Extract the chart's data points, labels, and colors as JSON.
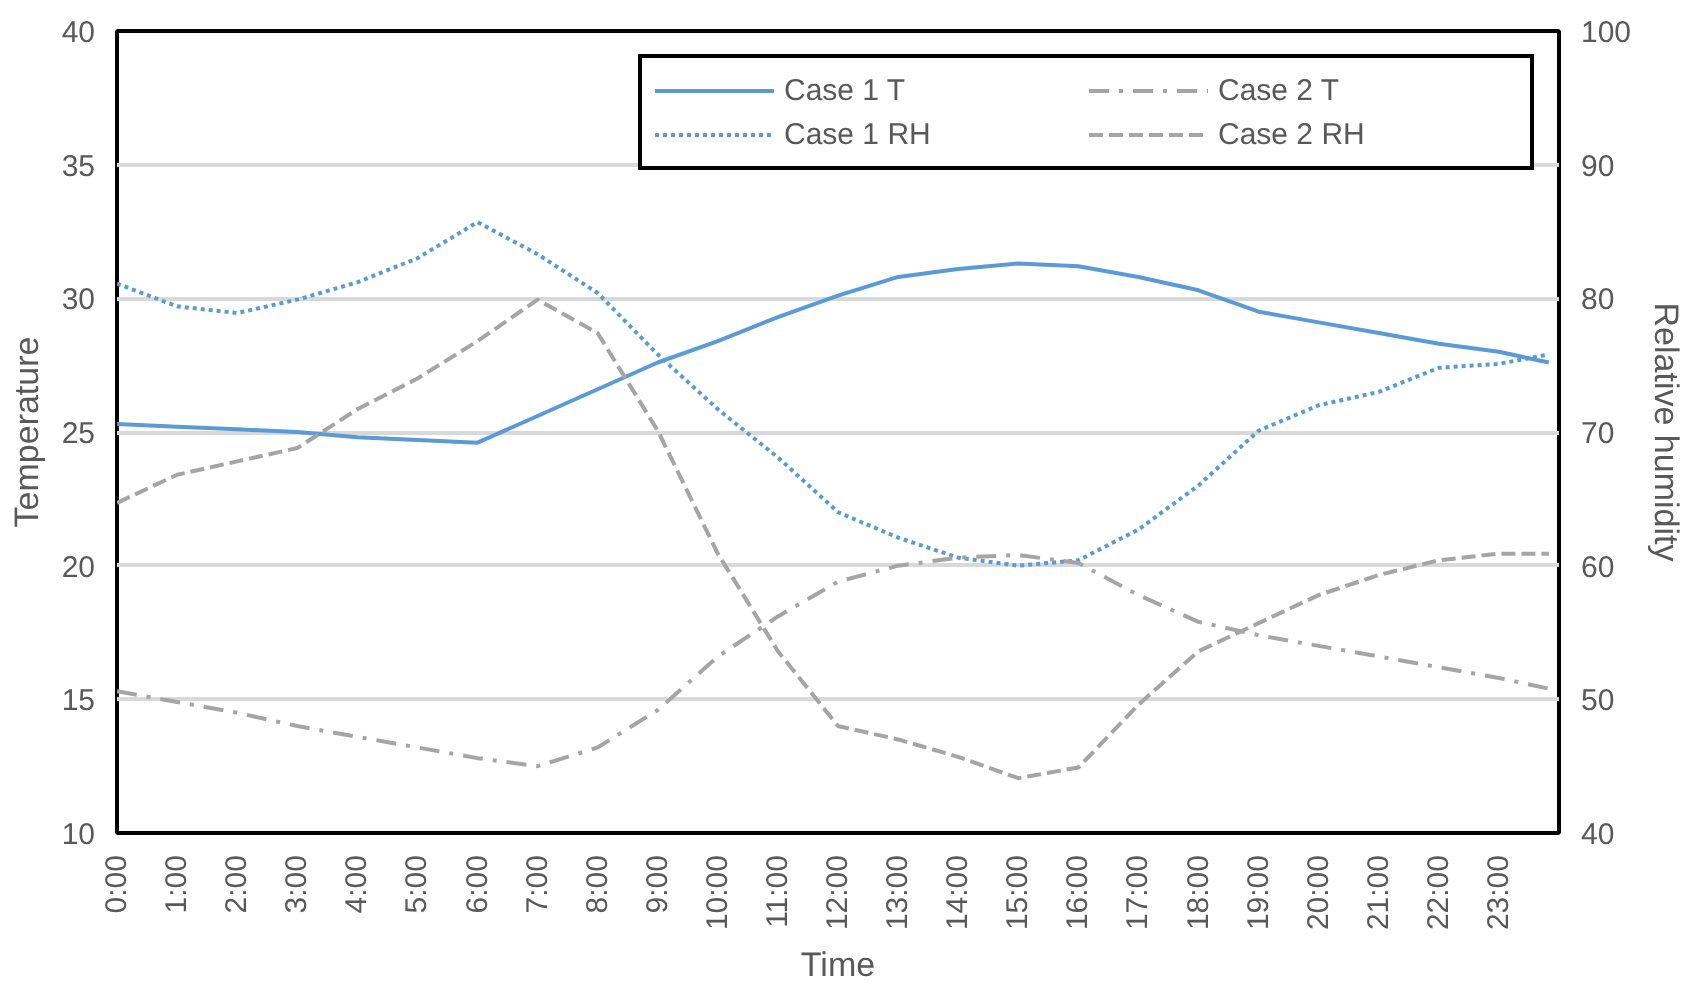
{
  "chart_data": {
    "type": "line",
    "xlabel": "Time",
    "ylabel": "Temperature",
    "y2label": "Relative humidity",
    "x": [
      0,
      1,
      2,
      3,
      4,
      5,
      6,
      7,
      8,
      9,
      10,
      11,
      12,
      13,
      14,
      15,
      16,
      17,
      18,
      19,
      20,
      21,
      22,
      23,
      23.83
    ],
    "xlim": [
      0,
      24
    ],
    "xticks": [
      {
        "value": 0,
        "label": "0:00"
      },
      {
        "value": 1,
        "label": "1:00"
      },
      {
        "value": 2,
        "label": "2:00"
      },
      {
        "value": 3,
        "label": "3:00"
      },
      {
        "value": 4,
        "label": "4:00"
      },
      {
        "value": 5,
        "label": "5:00"
      },
      {
        "value": 6,
        "label": "6:00"
      },
      {
        "value": 7,
        "label": "7:00"
      },
      {
        "value": 8,
        "label": "8:00"
      },
      {
        "value": 9,
        "label": "9:00"
      },
      {
        "value": 10,
        "label": "10:00"
      },
      {
        "value": 11,
        "label": "11:00"
      },
      {
        "value": 12,
        "label": "12:00"
      },
      {
        "value": 13,
        "label": "13:00"
      },
      {
        "value": 14,
        "label": "14:00"
      },
      {
        "value": 15,
        "label": "15:00"
      },
      {
        "value": 16,
        "label": "16:00"
      },
      {
        "value": 17,
        "label": "17:00"
      },
      {
        "value": 18,
        "label": "18:00"
      },
      {
        "value": 19,
        "label": "19:00"
      },
      {
        "value": 20,
        "label": "20:00"
      },
      {
        "value": 21,
        "label": "21:00"
      },
      {
        "value": 22,
        "label": "22:00"
      },
      {
        "value": 23,
        "label": "23:00"
      }
    ],
    "ylim": [
      10,
      40
    ],
    "yticks": [
      10,
      15,
      20,
      25,
      30,
      35,
      40
    ],
    "y2lim": [
      40,
      100
    ],
    "y2ticks": [
      40,
      50,
      60,
      70,
      80,
      90,
      100
    ],
    "grid": "y",
    "legend": "top right",
    "series": [
      {
        "name": "Case 1 T",
        "color": "#5b9bd5",
        "line_style": "solid",
        "values": [
          25.3,
          25.2,
          25.1,
          25.0,
          24.8,
          24.7,
          24.6,
          25.6,
          26.6,
          27.6,
          28.4,
          29.3,
          30.1,
          30.8,
          31.1,
          31.3,
          31.2,
          30.8,
          30.3,
          29.5,
          29.1,
          28.7,
          28.3,
          28.0,
          27.6
        ]
      },
      {
        "name": "Case 1 RH",
        "color": "#5b9bd5",
        "line_style": "dotted",
        "axis": "y2",
        "values": [
          81.1,
          79.4,
          78.9,
          79.9,
          81.2,
          83.0,
          85.7,
          83.3,
          80.4,
          75.8,
          71.7,
          68.1,
          64.0,
          62.1,
          60.6,
          60.0,
          60.4,
          62.7,
          66.0,
          70.1,
          72.0,
          73.0,
          74.8,
          75.1,
          75.8
        ]
      },
      {
        "name": "Case 2 T",
        "color": "#a5a5a5",
        "line_style": "dashdot",
        "values": [
          15.3,
          14.9,
          14.5,
          14.0,
          13.6,
          13.2,
          12.8,
          12.5,
          13.2,
          14.6,
          16.6,
          18.1,
          19.4,
          20.0,
          20.3,
          20.4,
          20.1,
          18.9,
          17.9,
          17.4,
          17.0,
          16.6,
          16.2,
          15.8,
          15.4
        ]
      },
      {
        "name": "Case 2 RH",
        "color": "#a5a5a5",
        "line_style": "dashed",
        "axis": "y2",
        "values": [
          64.7,
          66.8,
          67.8,
          68.8,
          71.7,
          74.0,
          76.8,
          79.9,
          77.4,
          70.1,
          60.9,
          53.6,
          48.0,
          47.0,
          45.7,
          44.1,
          44.9,
          49.6,
          53.6,
          55.7,
          57.8,
          59.3,
          60.4,
          60.9,
          60.9
        ]
      }
    ]
  }
}
